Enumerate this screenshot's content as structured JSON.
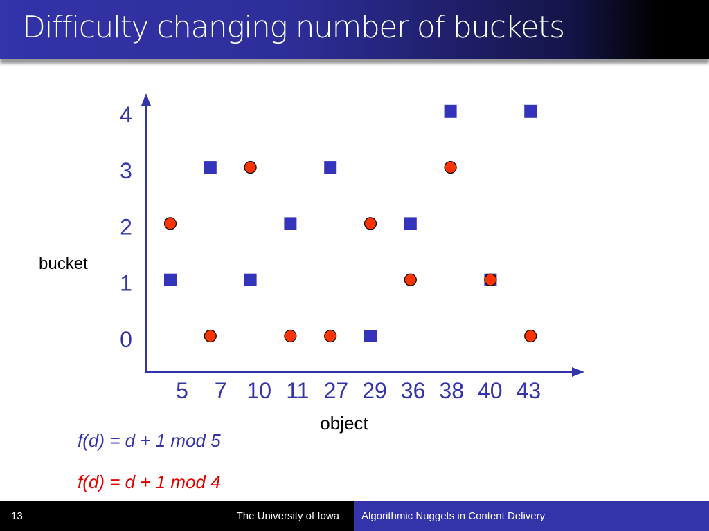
{
  "header": {
    "title": "Difficulty changing number of buckets"
  },
  "chart_data": {
    "type": "scatter",
    "xlabel": "object",
    "ylabel": "bucket",
    "categories": [
      "5",
      "7",
      "10",
      "11",
      "27",
      "29",
      "36",
      "38",
      "40",
      "43"
    ],
    "yticks": [
      "0",
      "1",
      "2",
      "3",
      "4"
    ],
    "ylim": [
      0,
      4
    ],
    "series": [
      {
        "name": "f(d) = d + 1 mod 5",
        "marker": "square",
        "color": "#3333bb",
        "values": [
          1,
          3,
          1,
          2,
          3,
          0,
          2,
          4,
          1,
          4
        ]
      },
      {
        "name": "f(d) = d + 1 mod 4",
        "marker": "circle",
        "color": "#ff3300",
        "values": [
          2,
          0,
          3,
          0,
          0,
          2,
          1,
          3,
          1,
          0
        ]
      }
    ]
  },
  "footer": {
    "page": "13",
    "university": "The University of Iowa",
    "course": "Algorithmic Nuggets in Content Delivery"
  }
}
